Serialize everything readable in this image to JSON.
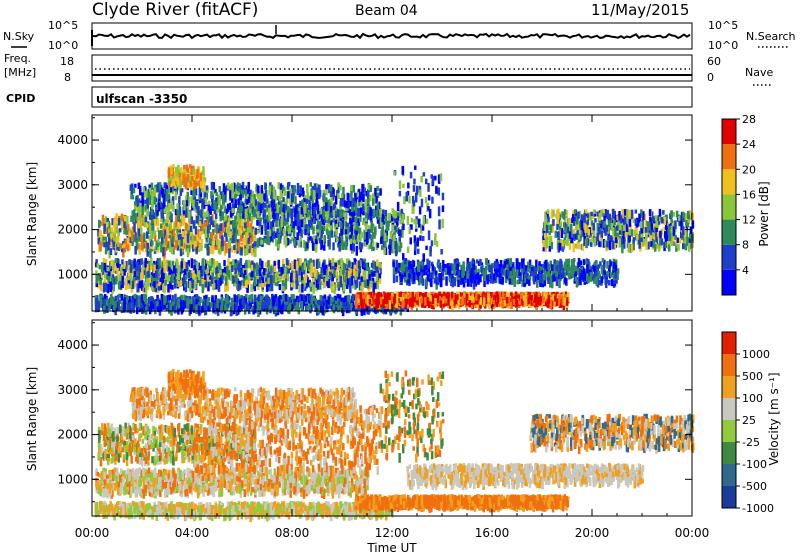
{
  "header": {
    "station": "Clyde River (fitACF)",
    "beam": "Beam 04",
    "date": "11/May/2015"
  },
  "top_panels": {
    "nsky_label": "N.Sky",
    "nsky_ticks": [
      "10^5",
      "10^0"
    ],
    "nsearch_label": "N.Search",
    "nsearch_ticks": [
      "10^5",
      "10^0"
    ],
    "freq_label_1": "Freq.",
    "freq_label_2": "[MHz]",
    "freq_ticks": [
      "18",
      "8"
    ],
    "nave_label": "Nave",
    "nave_ticks": [
      "60",
      "0"
    ],
    "cpid_label": "CPID",
    "cpid_value": "ulfscan -3350"
  },
  "chart_data": [
    {
      "type": "heatmap",
      "panel": "power",
      "ylabel": "Slant Range [km]",
      "yticks": [
        "1000",
        "2000",
        "3000",
        "4000"
      ],
      "ylim": [
        180,
        4560
      ],
      "xlim_hours": [
        0,
        24
      ],
      "colorbar_label": "Power [dB]",
      "colorbar_ticks": [
        "4",
        "8",
        "12",
        "16",
        "20",
        "24",
        "28"
      ],
      "colorbar_colors": [
        "#0000ff",
        "#1e40c8",
        "#2f8a5a",
        "#8ac53a",
        "#f0c020",
        "#f07010",
        "#e00000"
      ]
    },
    {
      "type": "heatmap",
      "panel": "velocity",
      "ylabel": "Slant Range [km]",
      "yticks": [
        "1000",
        "2000",
        "3000",
        "4000"
      ],
      "ylim": [
        180,
        4560
      ],
      "xlim_hours": [
        0,
        24
      ],
      "colorbar_label": "Velocity [m s⁻¹]",
      "colorbar_ticks": [
        "1000",
        "500",
        "100",
        "25",
        "-25",
        "-100",
        "-500",
        "-1000"
      ],
      "colorbar_colors": [
        "#1c3c9c",
        "#2f6a8a",
        "#3d8a40",
        "#8fcb3a",
        "#c8c8c0",
        "#f0a020",
        "#f07010",
        "#e02000"
      ]
    }
  ],
  "time_axis": {
    "ticks": [
      "00:00",
      "04:00",
      "08:00",
      "12:00",
      "16:00",
      "20:00",
      "00:00"
    ],
    "label": "Time UT"
  }
}
